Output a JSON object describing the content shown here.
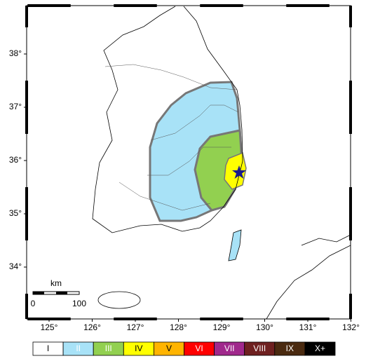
{
  "map": {
    "lon_ticks": [
      "125°",
      "126°",
      "127°",
      "128°",
      "129°",
      "130°",
      "131°",
      "132°"
    ],
    "lat_ticks": [
      "38°",
      "37°",
      "36°",
      "35°",
      "34°"
    ],
    "scale": {
      "unit": "km",
      "labels": [
        "0",
        "100"
      ]
    },
    "legend": [
      {
        "label": "I",
        "color": "#ffffff"
      },
      {
        "label": "II",
        "color": "#a8e2f7"
      },
      {
        "label": "III",
        "color": "#92d050"
      },
      {
        "label": "IV",
        "color": "#ffff00"
      },
      {
        "label": "V",
        "color": "#ffb400"
      },
      {
        "label": "VI",
        "color": "#ff0000"
      },
      {
        "label": "VII",
        "color": "#a0288c"
      },
      {
        "label": "VIII",
        "color": "#6e2020"
      },
      {
        "label": "IX",
        "color": "#4a2a10"
      },
      {
        "label": "X+",
        "color": "#000000"
      }
    ]
  }
}
